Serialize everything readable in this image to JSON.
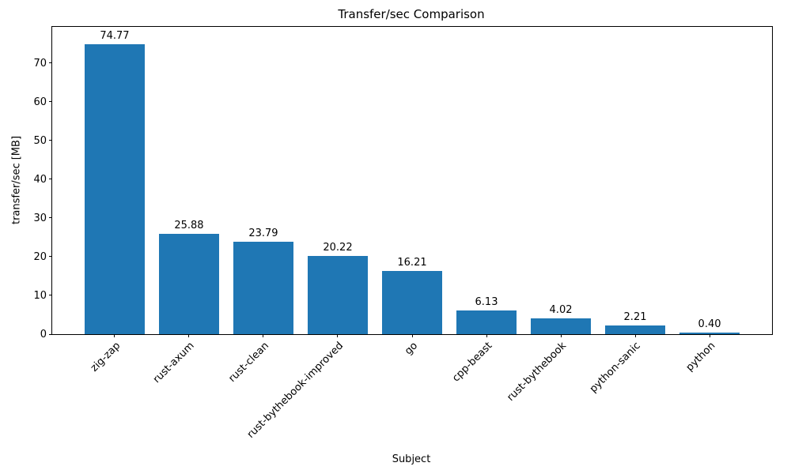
{
  "chart_data": {
    "type": "bar",
    "title": "Transfer/sec Comparison",
    "xlabel": "Subject",
    "ylabel": "transfer/sec [MB]",
    "categories": [
      "zig-zap",
      "rust-axum",
      "rust-clean",
      "rust-bythebook-improved",
      "go",
      "cpp-beast",
      "rust-bythebook",
      "python-sanic",
      "python"
    ],
    "values": [
      74.77,
      25.88,
      23.79,
      20.22,
      16.21,
      6.13,
      4.02,
      2.21,
      0.4
    ],
    "value_labels": [
      "74.77",
      "25.88",
      "23.79",
      "20.22",
      "16.21",
      "6.13",
      "4.02",
      "2.21",
      "0.40"
    ],
    "bar_color": "#1f77b4",
    "ylim": [
      0,
      79.3
    ],
    "yticks": [
      0,
      10,
      20,
      30,
      40,
      50,
      60,
      70
    ],
    "grid": false,
    "legend": null
  }
}
